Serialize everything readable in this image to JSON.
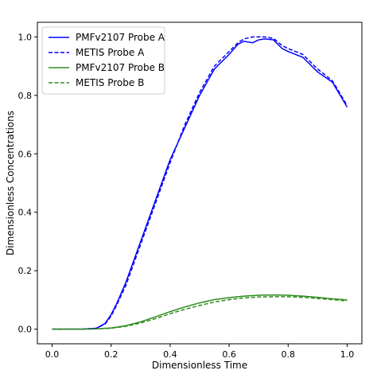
{
  "chart_data": {
    "type": "line",
    "title": "",
    "xlabel": "Dimensionless Time",
    "ylabel": "Dimensionless Concentrations",
    "xlim": [
      -0.05,
      1.05
    ],
    "ylim": [
      -0.05,
      1.05
    ],
    "xticks": [
      0.0,
      0.2,
      0.4,
      0.6,
      0.8,
      1.0
    ],
    "xtick_labels": [
      "0.0",
      "0.2",
      "0.4",
      "0.6",
      "0.8",
      "1.0"
    ],
    "yticks": [
      0.0,
      0.2,
      0.4,
      0.6,
      0.8,
      1.0
    ],
    "ytick_labels": [
      "0.0",
      "0.2",
      "0.4",
      "0.6",
      "0.8",
      "1.0"
    ],
    "grid": false,
    "legend_position": "top-left",
    "series": [
      {
        "name": "PMFv2107 Probe A",
        "color": "#0000ff",
        "dash": "solid",
        "x": [
          0.0,
          0.05,
          0.1,
          0.15,
          0.18,
          0.2,
          0.22,
          0.25,
          0.3,
          0.35,
          0.4,
          0.45,
          0.5,
          0.55,
          0.6,
          0.63,
          0.65,
          0.68,
          0.7,
          0.72,
          0.75,
          0.78,
          0.8,
          0.85,
          0.9,
          0.95,
          1.0
        ],
        "y": [
          0.0,
          0.0,
          0.0,
          0.003,
          0.02,
          0.05,
          0.09,
          0.16,
          0.3,
          0.44,
          0.58,
          0.69,
          0.8,
          0.89,
          0.94,
          0.975,
          0.985,
          0.98,
          0.99,
          0.993,
          0.99,
          0.96,
          0.95,
          0.93,
          0.88,
          0.845,
          0.76
        ]
      },
      {
        "name": "METIS Probe A",
        "color": "#0000ff",
        "dash": "dashed",
        "x": [
          0.0,
          0.05,
          0.1,
          0.15,
          0.18,
          0.2,
          0.22,
          0.25,
          0.3,
          0.35,
          0.4,
          0.45,
          0.5,
          0.55,
          0.6,
          0.63,
          0.65,
          0.68,
          0.7,
          0.72,
          0.75,
          0.78,
          0.8,
          0.85,
          0.9,
          0.95,
          1.0
        ],
        "y": [
          0.0,
          0.0,
          0.0,
          0.003,
          0.018,
          0.045,
          0.085,
          0.15,
          0.29,
          0.43,
          0.57,
          0.7,
          0.81,
          0.9,
          0.95,
          0.98,
          0.993,
          1.0,
          1.0,
          1.0,
          0.995,
          0.97,
          0.96,
          0.94,
          0.89,
          0.85,
          0.765
        ]
      },
      {
        "name": "PMFv2107 Probe B",
        "color": "#2e8b1e",
        "dash": "solid",
        "x": [
          0.0,
          0.05,
          0.1,
          0.15,
          0.2,
          0.25,
          0.3,
          0.35,
          0.4,
          0.45,
          0.5,
          0.55,
          0.6,
          0.65,
          0.7,
          0.75,
          0.8,
          0.85,
          0.9,
          0.95,
          1.0
        ],
        "y": [
          0.0,
          0.0,
          0.0,
          0.001,
          0.004,
          0.012,
          0.025,
          0.042,
          0.06,
          0.076,
          0.09,
          0.101,
          0.108,
          0.113,
          0.116,
          0.117,
          0.116,
          0.113,
          0.109,
          0.104,
          0.1
        ]
      },
      {
        "name": "METIS Probe B",
        "color": "#2e8b1e",
        "dash": "dashed",
        "x": [
          0.0,
          0.05,
          0.1,
          0.15,
          0.2,
          0.25,
          0.3,
          0.35,
          0.4,
          0.45,
          0.5,
          0.55,
          0.6,
          0.65,
          0.7,
          0.75,
          0.8,
          0.85,
          0.9,
          0.95,
          1.0
        ],
        "y": [
          0.0,
          0.0,
          0.0,
          0.001,
          0.003,
          0.01,
          0.021,
          0.036,
          0.053,
          0.068,
          0.081,
          0.093,
          0.101,
          0.107,
          0.11,
          0.111,
          0.111,
          0.109,
          0.105,
          0.101,
          0.097
        ]
      }
    ]
  }
}
